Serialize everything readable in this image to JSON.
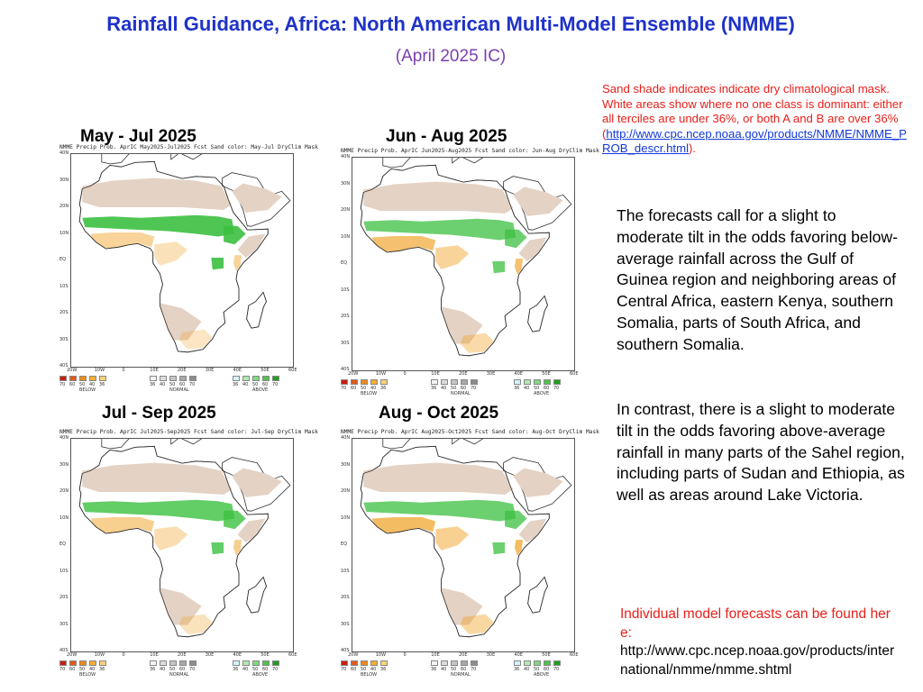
{
  "title": "Rainfall Guidance, Africa:  North American Multi-Model Ensemble (NMME)",
  "subtitle": "(April 2025 IC)",
  "note": {
    "text": "Sand shade indicates indicate dry climatological mask. White areas show where no one class is dominant: either all terciles are under 36%, or both A and B are over 36%",
    "link_open": "(",
    "link": "http://www.cpc.ncep.noaa.gov/products/NMME/NMME_PROB_descr.html",
    "link_close": ")."
  },
  "paragraph1": "The forecasts call for a slight to moderate tilt in the odds favoring below-average rainfall across the Gulf of Guinea region and neighboring areas of Central Africa, eastern Kenya, southern Somalia, parts of South Africa, and southern Somalia.",
  "paragraph2": "In contrast, there is a slight to moderate tilt in the odds favoring above-average rainfall in many parts of the Sahel region, including parts of Sudan and Ethiopia, as well as areas around Lake Victoria.",
  "footer": {
    "text": "Individual model forecasts can be found here:",
    "url": "http://www.cpc.ncep.noaa.gov/products/international/nmme/nmme.shtml"
  },
  "colors": {
    "title": "#1f32c8",
    "subtitle": "#7a3fb0",
    "note": "#e8201b",
    "link": "#1238d8",
    "sand": "#e4d2c4",
    "below": "#f0a020",
    "above": "#3cc040",
    "land": "#ffffff"
  },
  "lat_labels": [
    "40N",
    "30N",
    "20N",
    "10N",
    "EQ",
    "10S",
    "20S",
    "30S",
    "40S"
  ],
  "lon_labels": [
    "20W",
    "10W",
    "0",
    "10E",
    "20E",
    "30E",
    "40E",
    "50E",
    "60E"
  ],
  "colorbar": {
    "below_values": [
      "70",
      "60",
      "50",
      "40",
      "36"
    ],
    "below_name": "BELOW",
    "normal_values": [
      "36",
      "40",
      "50",
      "60",
      "70"
    ],
    "normal_name": "NORMAL",
    "above_values": [
      "36",
      "40",
      "50",
      "60",
      "70"
    ],
    "above_name": "ABOVE",
    "below_colors": [
      "#c81e10",
      "#e05a1a",
      "#ee8a1c",
      "#f5ad34",
      "#f9d27a"
    ],
    "normal_colors": [
      "#f4f4f4",
      "#dcdcdc",
      "#c4c4c4",
      "#a8a8a8",
      "#8c8c8c"
    ],
    "above_colors": [
      "#d6f2fb",
      "#b2e8b2",
      "#7fd87f",
      "#4cc44c",
      "#1ea01e"
    ]
  },
  "maps": [
    {
      "period": "May - Jul 2025",
      "header": "NMME  Precip Prob. AprIC  May2025-Jul2025 Fcst   Sand color: May-Jul DryClim Mask",
      "above_level": 0.9,
      "below_level": 0.45
    },
    {
      "period": "Jun - Aug 2025",
      "header": "NMME  Precip Prob. AprIC  Jun2025-Aug2025 Fcst   Sand color: Jun-Aug DryClim Mask",
      "above_level": 0.75,
      "below_level": 0.65
    },
    {
      "period": "Jul - Sep 2025",
      "header": "NMME  Precip Prob. AprIC  Jul2025-Sep2025 Fcst   Sand color: Jul-Sep DryClim Mask",
      "above_level": 0.8,
      "below_level": 0.5
    },
    {
      "period": "Aug - Oct 2025",
      "header": "NMME  Precip Prob. AprIC  Aug2025-Oct2025 Fcst   Sand color: Aug-Oct DryClim Mask",
      "above_level": 0.75,
      "below_level": 0.7
    }
  ]
}
